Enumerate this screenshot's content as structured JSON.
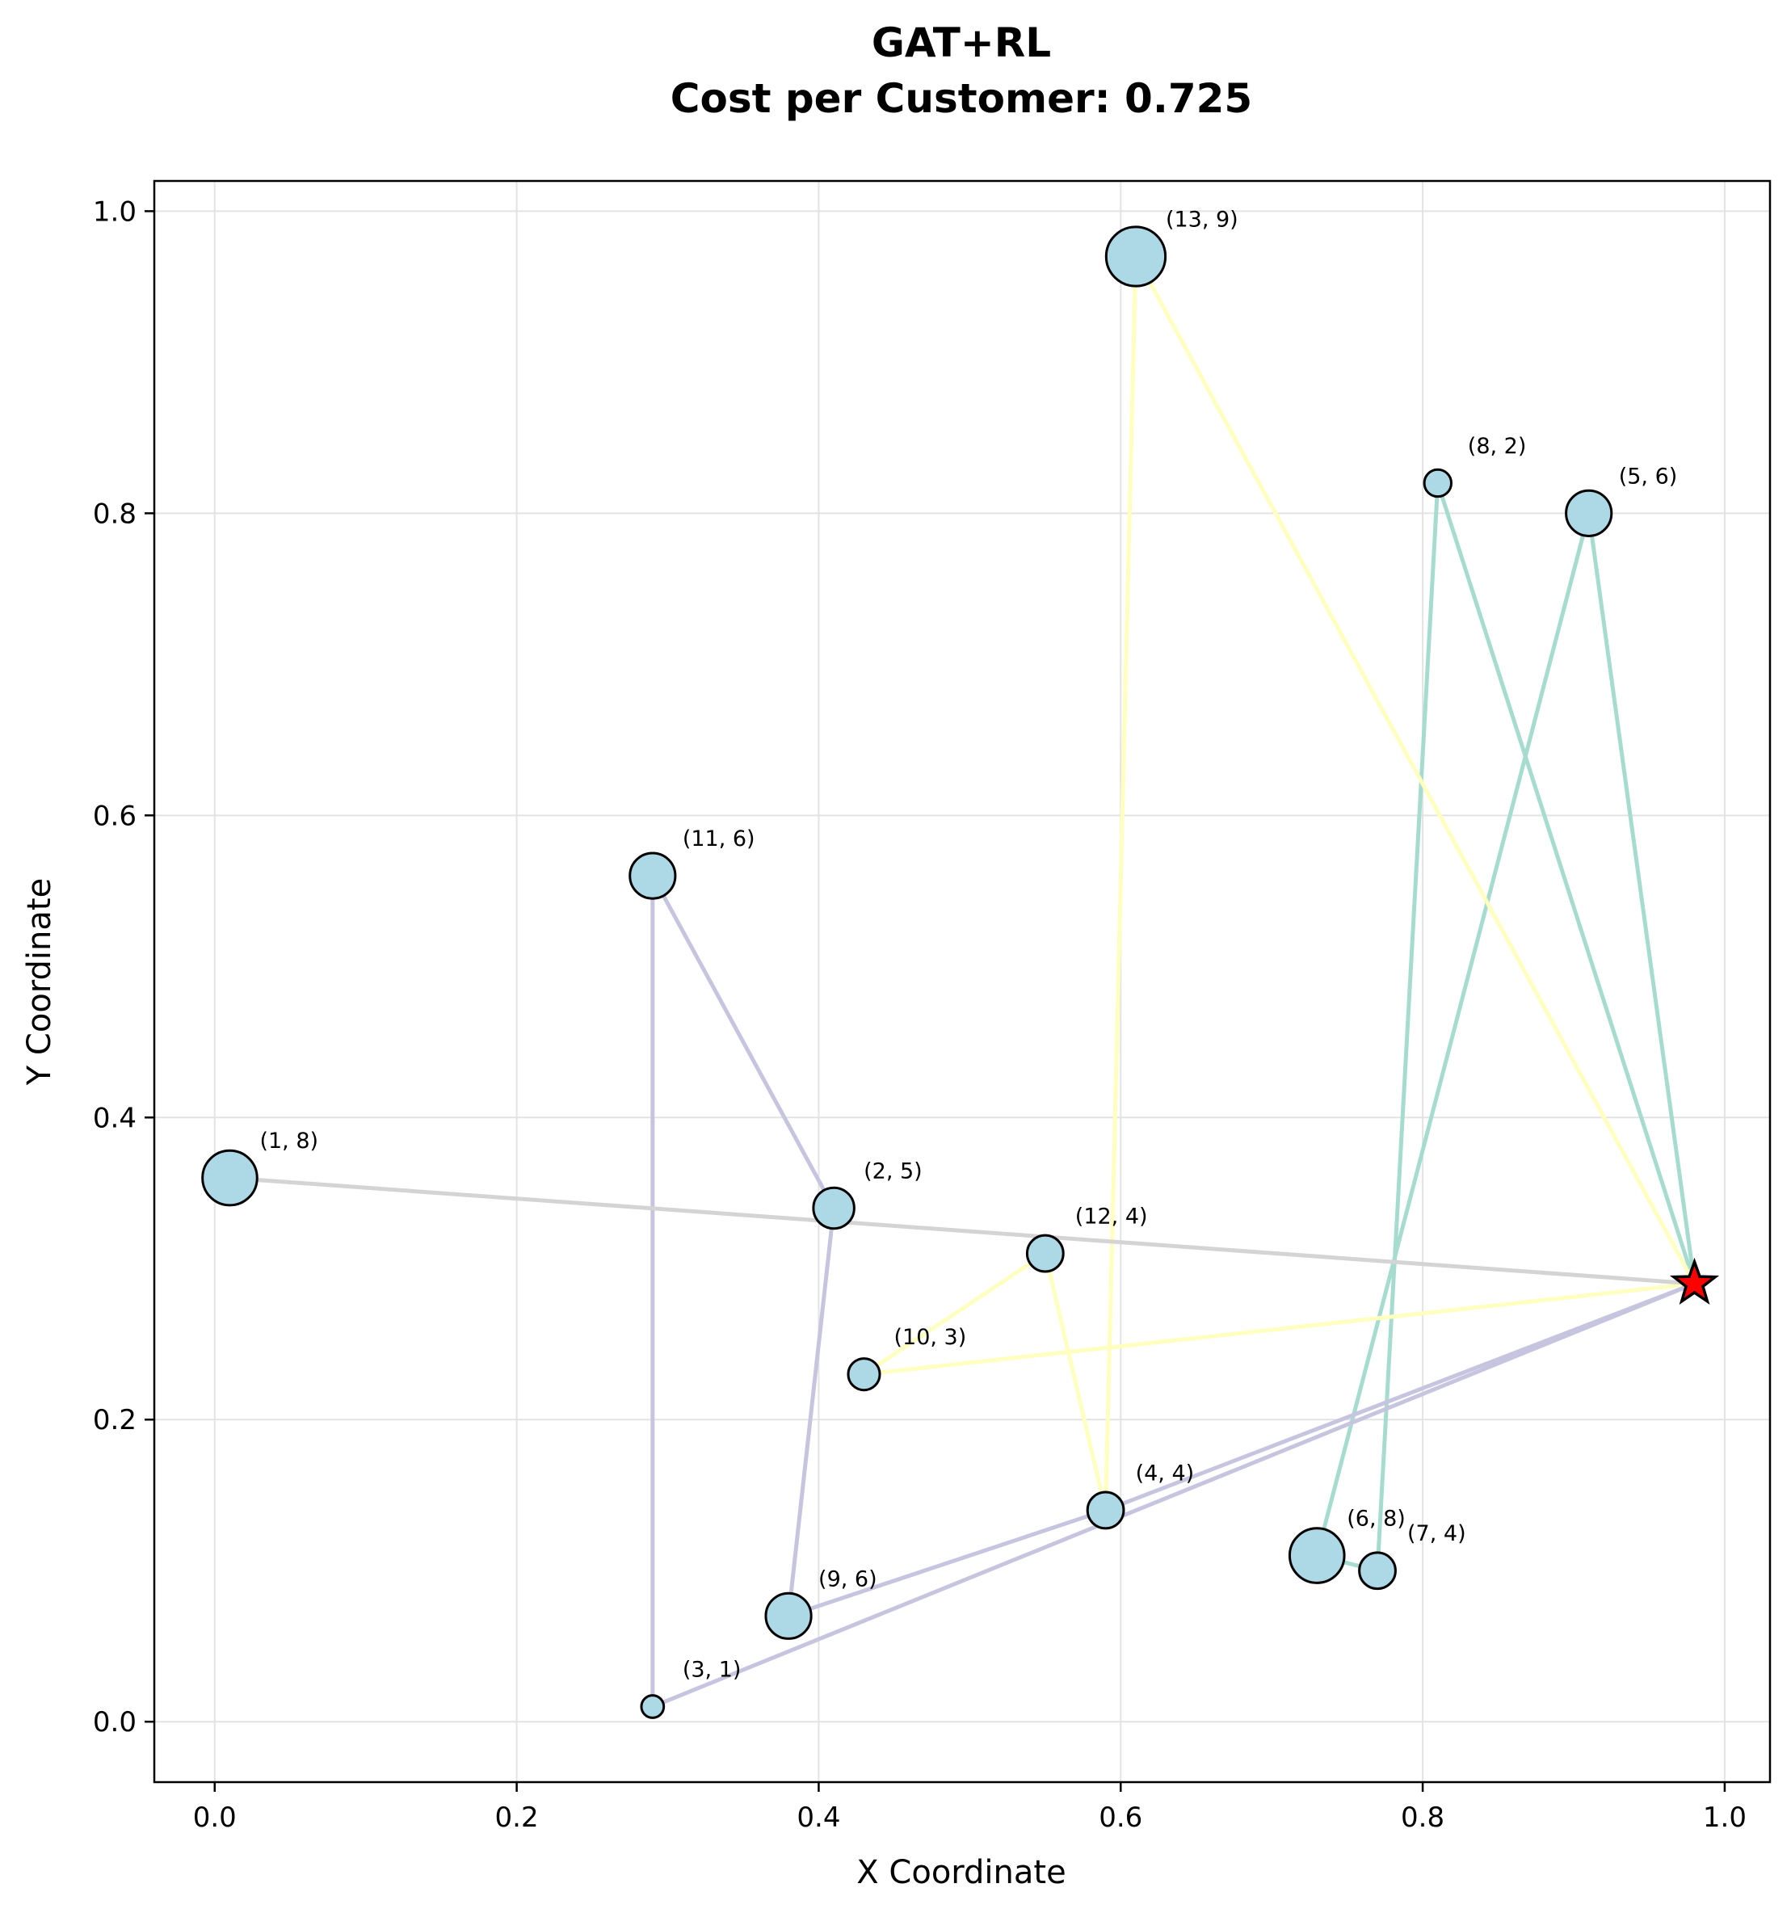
{
  "chart_data": {
    "type": "scatter",
    "title": "GAT+RL",
    "subtitle": "Cost per Customer: 0.725",
    "xlabel": "X Coordinate",
    "ylabel": "Y Coordinate",
    "xlim": [
      -0.04,
      1.03
    ],
    "ylim": [
      -0.04,
      1.02
    ],
    "xticks": [
      0.0,
      0.2,
      0.4,
      0.6,
      0.8,
      1.0
    ],
    "yticks": [
      0.0,
      0.2,
      0.4,
      0.6,
      0.8,
      1.0
    ],
    "grid": true,
    "depot": {
      "x": 0.98,
      "y": 0.29,
      "marker": "star",
      "color": "#ff0000"
    },
    "node_color": "#add8e6",
    "customers": [
      {
        "id": 1,
        "demand": 8,
        "label": "(1, 8)",
        "x": 0.01,
        "y": 0.36
      },
      {
        "id": 2,
        "demand": 5,
        "label": "(2, 5)",
        "x": 0.41,
        "y": 0.34
      },
      {
        "id": 3,
        "demand": 1,
        "label": "(3, 1)",
        "x": 0.29,
        "y": 0.01
      },
      {
        "id": 4,
        "demand": 4,
        "label": "(4, 4)",
        "x": 0.59,
        "y": 0.14
      },
      {
        "id": 5,
        "demand": 6,
        "label": "(5, 6)",
        "x": 0.91,
        "y": 0.8
      },
      {
        "id": 6,
        "demand": 8,
        "label": "(6, 8)",
        "x": 0.73,
        "y": 0.11
      },
      {
        "id": 7,
        "demand": 4,
        "label": "(7, 4)",
        "x": 0.77,
        "y": 0.1
      },
      {
        "id": 8,
        "demand": 2,
        "label": "(8, 2)",
        "x": 0.81,
        "y": 0.82
      },
      {
        "id": 9,
        "demand": 6,
        "label": "(9, 6)",
        "x": 0.38,
        "y": 0.07
      },
      {
        "id": 10,
        "demand": 3,
        "label": "(10, 3)",
        "x": 0.43,
        "y": 0.23
      },
      {
        "id": 11,
        "demand": 6,
        "label": "(11, 6)",
        "x": 0.29,
        "y": 0.56
      },
      {
        "id": 12,
        "demand": 4,
        "label": "(12, 4)",
        "x": 0.55,
        "y": 0.31
      },
      {
        "id": 13,
        "demand": 9,
        "label": "(13, 9)",
        "x": 0.61,
        "y": 0.97
      }
    ],
    "routes": [
      {
        "color": "#a6dcd0",
        "sequence": [
          0,
          8,
          7,
          6,
          5,
          0
        ]
      },
      {
        "color": "#ffffbf",
        "sequence": [
          0,
          13,
          4,
          12,
          10,
          0
        ]
      },
      {
        "color": "#c6c4df",
        "sequence": [
          0,
          4,
          9,
          2,
          11,
          3,
          0
        ]
      },
      {
        "color": "#d4d4d4",
        "sequence": [
          0,
          1
        ]
      }
    ]
  }
}
